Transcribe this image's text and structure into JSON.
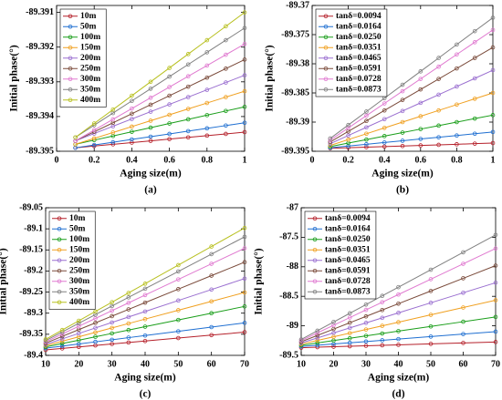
{
  "chart_data": [
    {
      "type": "line",
      "panel_label": "(a)",
      "xlabel": "Aging size(m)",
      "ylabel": "Initial phase(°)",
      "grid": false,
      "legend": "upper left",
      "x": [
        0.1,
        0.2,
        0.3,
        0.4,
        0.5,
        0.6,
        0.7,
        0.8,
        0.9,
        1.0
      ],
      "xlim": [
        0,
        1
      ],
      "xticks": [
        0,
        0.2,
        0.4,
        0.6,
        0.8,
        1
      ],
      "ylim": [
        -89.395,
        -89.3908
      ],
      "yticks": [
        -89.395,
        -89.394,
        -89.393,
        -89.392,
        -89.391
      ],
      "series": [
        {
          "name": "10m",
          "color": "#b5202a",
          "values": [
            -89.3949,
            -89.39485,
            -89.3948,
            -89.39475,
            -89.3947,
            -89.39465,
            -89.3946,
            -89.39455,
            -89.3945,
            -89.39445
          ]
        },
        {
          "name": "50m",
          "color": "#1f6fd1",
          "values": [
            -89.3949,
            -89.39482,
            -89.39474,
            -89.39466,
            -89.39458,
            -89.3945,
            -89.39442,
            -89.39434,
            -89.39426,
            -89.39418
          ]
        },
        {
          "name": "100m",
          "color": "#1a9e1a",
          "values": [
            -89.3948,
            -89.39468,
            -89.39456,
            -89.39444,
            -89.39432,
            -89.3942,
            -89.39408,
            -89.39396,
            -89.39384,
            -89.39372
          ]
        },
        {
          "name": "150m",
          "color": "#f0a020",
          "values": [
            -89.3948,
            -89.39463,
            -89.39446,
            -89.39429,
            -89.39412,
            -89.39395,
            -89.39378,
            -89.39361,
            -89.39344,
            -89.39327
          ]
        },
        {
          "name": "200m",
          "color": "#9a6fd0",
          "values": [
            -89.3947,
            -89.39449,
            -89.39428,
            -89.39407,
            -89.39386,
            -89.39365,
            -89.39344,
            -89.39323,
            -89.39302,
            -89.39281
          ]
        },
        {
          "name": "250m",
          "color": "#7a4a3a",
          "values": [
            -89.3947,
            -89.39444,
            -89.39418,
            -89.39392,
            -89.39366,
            -89.3934,
            -89.39314,
            -89.39288,
            -89.39262,
            -89.39236
          ]
        },
        {
          "name": "300m",
          "color": "#e07ad0",
          "values": [
            -89.3947,
            -89.39439,
            -89.39408,
            -89.39377,
            -89.39346,
            -89.39315,
            -89.39284,
            -89.39253,
            -89.39222,
            -89.39191
          ]
        },
        {
          "name": "350m",
          "color": "#808080",
          "values": [
            -89.3946,
            -89.39425,
            -89.3939,
            -89.39355,
            -89.3932,
            -89.39285,
            -89.3925,
            -89.39215,
            -89.3918,
            -89.39145
          ]
        },
        {
          "name": "400m",
          "color": "#b8c020",
          "values": [
            -89.3946,
            -89.3942,
            -89.3938,
            -89.3934,
            -89.393,
            -89.3926,
            -89.3922,
            -89.3918,
            -89.3914,
            -89.391
          ]
        }
      ]
    },
    {
      "type": "line",
      "panel_label": "(b)",
      "xlabel": "Aging size(m)",
      "ylabel": "Initial phase(°)",
      "grid": false,
      "legend": "upper left",
      "x": [
        0.1,
        0.2,
        0.3,
        0.4,
        0.5,
        0.6,
        0.7,
        0.8,
        0.9,
        1.0
      ],
      "xlim": [
        0,
        1
      ],
      "xticks": [
        0,
        0.2,
        0.4,
        0.6,
        0.8,
        1
      ],
      "ylim": [
        -89.395,
        -89.37
      ],
      "yticks": [
        -89.395,
        -89.39,
        -89.385,
        -89.38,
        -89.375,
        -89.37
      ],
      "series": [
        {
          "name": "tanδ=0.0094",
          "color": "#b5202a",
          "values": [
            -89.3945,
            -89.3944,
            -89.3943,
            -89.3942,
            -89.3941,
            -89.394,
            -89.3939,
            -89.3938,
            -89.3937,
            -89.3936
          ]
        },
        {
          "name": "tanδ=0.0164",
          "color": "#1f6fd1",
          "values": [
            -89.3944,
            -89.3941,
            -89.3938,
            -89.3935,
            -89.3932,
            -89.3929,
            -89.3926,
            -89.3923,
            -89.392,
            -89.3917
          ]
        },
        {
          "name": "tanδ=0.0250",
          "color": "#1a9e1a",
          "values": [
            -89.3942,
            -89.3936,
            -89.393,
            -89.3924,
            -89.3918,
            -89.3912,
            -89.3906,
            -89.39,
            -89.3894,
            -89.3888
          ]
        },
        {
          "name": "tanδ=0.0351",
          "color": "#f0a020",
          "values": [
            -89.394,
            -89.393,
            -89.392,
            -89.391,
            -89.39,
            -89.389,
            -89.388,
            -89.387,
            -89.386,
            -89.385
          ]
        },
        {
          "name": "tanδ=0.0465",
          "color": "#9a6fd0",
          "values": [
            -89.3937,
            -89.3923,
            -89.3909,
            -89.3895,
            -89.3881,
            -89.3867,
            -89.3853,
            -89.3839,
            -89.3825,
            -89.3811
          ]
        },
        {
          "name": "tanδ=0.0591",
          "color": "#7a4a3a",
          "values": [
            -89.3934,
            -89.3916,
            -89.3898,
            -89.388,
            -89.3862,
            -89.3844,
            -89.3826,
            -89.3808,
            -89.379,
            -89.3772
          ]
        },
        {
          "name": "tanδ=0.0728",
          "color": "#e07ad0",
          "values": [
            -89.3931,
            -89.391,
            -89.3889,
            -89.3868,
            -89.3847,
            -89.3826,
            -89.3805,
            -89.3784,
            -89.3763,
            -89.3742
          ]
        },
        {
          "name": "tanδ=0.0873",
          "color": "#808080",
          "values": [
            -89.3928,
            -89.3905,
            -89.3882,
            -89.3859,
            -89.3836,
            -89.3813,
            -89.379,
            -89.3767,
            -89.3744,
            -89.3721
          ]
        }
      ]
    },
    {
      "type": "line",
      "panel_label": "(c)",
      "xlabel": "Aging size(m)",
      "ylabel": "Initial phase(°)",
      "grid": false,
      "legend": "upper left",
      "x": [
        10,
        15,
        20,
        25,
        30,
        35,
        40,
        50,
        60,
        70
      ],
      "xlim": [
        10,
        70
      ],
      "xticks": [
        10,
        20,
        30,
        40,
        50,
        60,
        70
      ],
      "ylim": [
        -89.4,
        -89.05
      ],
      "yticks": [
        -89.4,
        -89.35,
        -89.3,
        -89.25,
        -89.2,
        -89.15,
        -89.1,
        -89.05
      ],
      "series": [
        {
          "name": "10m",
          "color": "#b5202a",
          "values": [
            -89.387,
            -89.3835,
            -89.38,
            -89.3765,
            -89.373,
            -89.3695,
            -89.366,
            -89.359,
            -89.352,
            -89.345
          ]
        },
        {
          "name": "50m",
          "color": "#1f6fd1",
          "values": [
            -89.383,
            -89.378,
            -89.373,
            -89.368,
            -89.363,
            -89.358,
            -89.353,
            -89.343,
            -89.333,
            -89.323
          ]
        },
        {
          "name": "100m",
          "color": "#1a9e1a",
          "values": [
            -89.38,
            -89.372,
            -89.364,
            -89.356,
            -89.348,
            -89.34,
            -89.332,
            -89.316,
            -89.3,
            -89.284
          ]
        },
        {
          "name": "150m",
          "color": "#f0a020",
          "values": [
            -89.377,
            -89.3665,
            -89.356,
            -89.3455,
            -89.335,
            -89.3245,
            -89.314,
            -89.293,
            -89.272,
            -89.251
          ]
        },
        {
          "name": "200m",
          "color": "#9a6fd0",
          "values": [
            -89.374,
            -89.361,
            -89.348,
            -89.335,
            -89.322,
            -89.309,
            -89.296,
            -89.27,
            -89.244,
            -89.218
          ]
        },
        {
          "name": "250m",
          "color": "#7a4a3a",
          "values": [
            -89.371,
            -89.355,
            -89.339,
            -89.323,
            -89.307,
            -89.291,
            -89.275,
            -89.243,
            -89.211,
            -89.179
          ]
        },
        {
          "name": "300m",
          "color": "#e07ad0",
          "values": [
            -89.368,
            -89.3495,
            -89.331,
            -89.3125,
            -89.294,
            -89.2755,
            -89.257,
            -89.22,
            -89.183,
            -89.146
          ]
        },
        {
          "name": "350m",
          "color": "#808080",
          "values": [
            -89.365,
            -89.3445,
            -89.324,
            -89.3035,
            -89.283,
            -89.2625,
            -89.242,
            -89.201,
            -89.16,
            -89.119
          ]
        },
        {
          "name": "400m",
          "color": "#b8c020",
          "values": [
            -89.362,
            -89.34,
            -89.318,
            -89.296,
            -89.274,
            -89.252,
            -89.23,
            -89.186,
            -89.142,
            -89.098
          ]
        }
      ]
    },
    {
      "type": "line",
      "panel_label": "(d)",
      "xlabel": "Aging size(m)",
      "ylabel": "Initial phase(°)",
      "grid": false,
      "legend": "upper left",
      "x": [
        10,
        15,
        20,
        25,
        30,
        35,
        40,
        50,
        60,
        70
      ],
      "xlim": [
        10,
        70
      ],
      "xticks": [
        10,
        20,
        30,
        40,
        50,
        60,
        70
      ],
      "ylim": [
        -89.5,
        -87
      ],
      "yticks": [
        -89.5,
        -89,
        -88.5,
        -88,
        -87.5,
        -87
      ],
      "series": [
        {
          "name": "tanδ=0.0094",
          "color": "#b5202a",
          "values": [
            -89.37,
            -89.362,
            -89.354,
            -89.346,
            -89.338,
            -89.33,
            -89.322,
            -89.306,
            -89.29,
            -89.274
          ]
        },
        {
          "name": "tanδ=0.0164",
          "color": "#1f6fd1",
          "values": [
            -89.35,
            -89.329,
            -89.308,
            -89.287,
            -89.266,
            -89.245,
            -89.224,
            -89.182,
            -89.14,
            -89.098
          ]
        },
        {
          "name": "tanδ=0.0250",
          "color": "#1a9e1a",
          "values": [
            -89.33,
            -89.29,
            -89.25,
            -89.21,
            -89.17,
            -89.13,
            -89.09,
            -89.01,
            -88.93,
            -88.85
          ]
        },
        {
          "name": "tanδ=0.0351",
          "color": "#f0a020",
          "values": [
            -89.31,
            -89.248,
            -89.186,
            -89.124,
            -89.062,
            -89,
            -88.938,
            -88.814,
            -88.69,
            -88.566
          ]
        },
        {
          "name": "tanδ=0.0465",
          "color": "#9a6fd0",
          "values": [
            -89.29,
            -89.205,
            -89.12,
            -89.035,
            -88.95,
            -88.865,
            -88.78,
            -88.61,
            -88.44,
            -88.27
          ]
        },
        {
          "name": "tanδ=0.0591",
          "color": "#7a4a3a",
          "values": [
            -89.27,
            -89.1625,
            -89.055,
            -88.9475,
            -88.84,
            -88.7325,
            -88.625,
            -88.41,
            -88.195,
            -87.98
          ]
        },
        {
          "name": "tanδ=0.0728",
          "color": "#e07ad0",
          "values": [
            -89.25,
            -89.12,
            -88.99,
            -88.86,
            -88.73,
            -88.6,
            -88.47,
            -88.21,
            -87.95,
            -87.69
          ]
        },
        {
          "name": "tanδ=0.0873",
          "color": "#808080",
          "values": [
            -89.23,
            -89.0825,
            -88.935,
            -88.7875,
            -88.64,
            -88.4925,
            -88.345,
            -88.05,
            -87.755,
            -87.46
          ]
        }
      ]
    }
  ]
}
